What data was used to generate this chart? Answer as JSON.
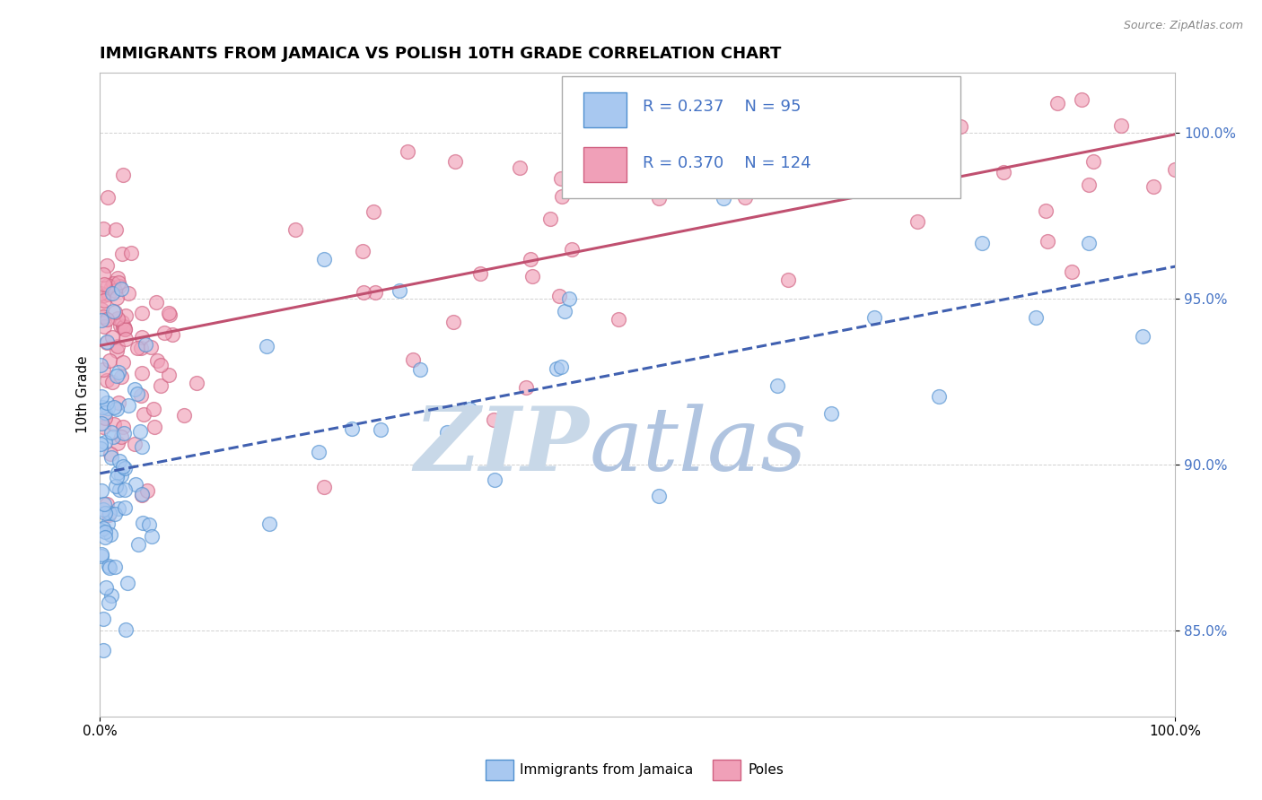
{
  "title": "IMMIGRANTS FROM JAMAICA VS POLISH 10TH GRADE CORRELATION CHART",
  "source_text": "Source: ZipAtlas.com",
  "ylabel": "10th Grade",
  "legend_entries": [
    "Immigrants from Jamaica",
    "Poles"
  ],
  "r_jamaica": 0.237,
  "n_jamaica": 95,
  "r_polish": 0.37,
  "n_polish": 124,
  "xlim": [
    0.0,
    1.0
  ],
  "ylim_min": 0.824,
  "ylim_max": 1.018,
  "ytick_values": [
    0.85,
    0.9,
    0.95,
    1.0
  ],
  "color_jamaica_fill": "#A8C8F0",
  "color_polish_fill": "#F0A0B8",
  "color_jamaica_edge": "#5090D0",
  "color_polish_edge": "#D06080",
  "color_jamaica_line": "#4060B0",
  "color_polish_line": "#C05070",
  "color_r_text": "#4472C4",
  "color_n_text": "#D04060",
  "background_color": "#FFFFFF",
  "grid_color": "#cccccc",
  "watermark_zip_color": "#C8D8E8",
  "watermark_atlas_color": "#B0C4E0",
  "seed_jamaica": 42,
  "seed_polish": 123
}
